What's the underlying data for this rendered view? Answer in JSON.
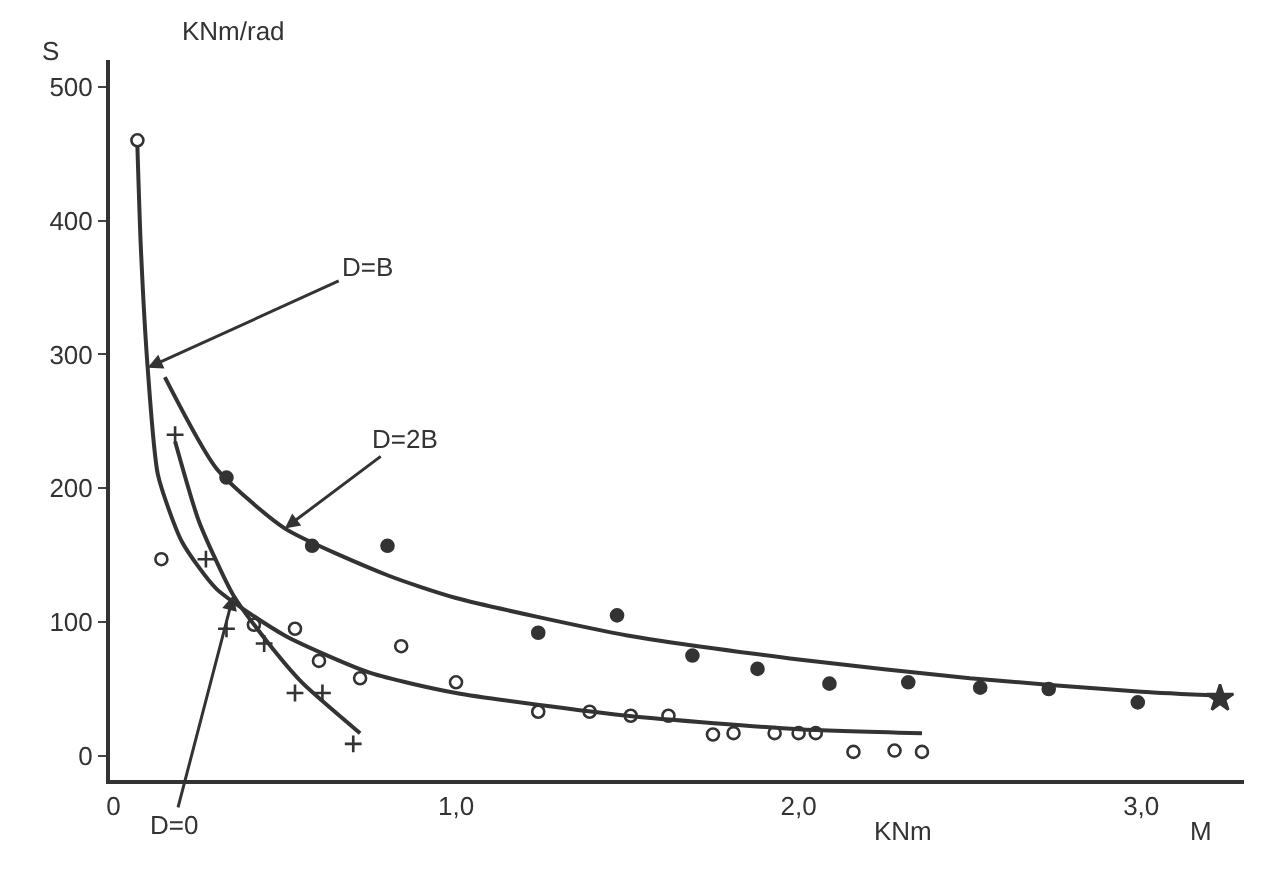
{
  "chart_data": {
    "type": "scatter",
    "ylabel": "S",
    "xlabel": "M",
    "annotations": [
      "KNm/rad",
      "KNm",
      {
        "text": "D=B",
        "x": 0.1,
        "y": 290
      },
      {
        "text": "D=2B",
        "x": 0.5,
        "y": 170
      },
      {
        "text": "D=0",
        "x": 0.35,
        "y": 120
      }
    ],
    "xlim": [
      -0.01,
      3.3
    ],
    "xticks": [
      0,
      {
        "value": 1.0,
        "label": "1,0"
      },
      {
        "value": 2.0,
        "label": "2,0"
      },
      {
        "value": 3.0,
        "label": "3,0"
      }
    ],
    "ylim": [
      -18,
      520
    ],
    "yticks": [
      0,
      100,
      200,
      300,
      400,
      500
    ],
    "series": [
      {
        "marker": "circle-open",
        "color": "#333333",
        "x": [
          0.07,
          0.14,
          0.41,
          0.53,
          0.6,
          0.72,
          0.84,
          1.0,
          1.24,
          1.39,
          1.51,
          1.62,
          1.75,
          1.81,
          1.93,
          2.0,
          2.05,
          2.16,
          2.28,
          2.36
        ],
        "values": [
          460,
          147,
          98,
          95,
          71,
          58,
          82,
          55,
          33,
          33,
          30,
          30,
          16,
          17,
          17,
          17,
          17,
          3,
          4,
          3
        ]
      },
      {
        "marker": "cross",
        "color": "#333333",
        "x": [
          0.18,
          0.27,
          0.33,
          0.44,
          0.53,
          0.61,
          0.7
        ],
        "values": [
          240,
          147,
          95,
          84,
          47,
          47,
          9
        ]
      },
      {
        "marker": "circle",
        "color": "#333333",
        "x": [
          0.33,
          0.58,
          0.8,
          1.24,
          1.47,
          1.69,
          1.88,
          2.09,
          2.32,
          2.53,
          2.73,
          2.99
        ],
        "values": [
          208,
          157,
          157,
          92,
          105,
          75,
          65,
          54,
          55,
          51,
          50,
          40
        ]
      },
      {
        "marker": "star",
        "color": "#333333",
        "x": [
          3.23
        ],
        "values": [
          43
        ]
      },
      {
        "type": "line",
        "marker": "none",
        "color": "#333333",
        "x": [
          0.07,
          0.08,
          0.1,
          0.13,
          0.2,
          0.3,
          0.5,
          0.75,
          1.0,
          1.5,
          2.0,
          2.36
        ],
        "values": [
          455,
          380,
          290,
          210,
          160,
          125,
          90,
          62,
          47,
          30,
          20,
          17
        ]
      },
      {
        "type": "line",
        "marker": "none",
        "color": "#333333",
        "x": [
          0.15,
          0.3,
          0.5,
          0.8,
          1.0,
          1.5,
          2.0,
          2.5,
          3.0,
          3.23
        ],
        "values": [
          283,
          215,
          170,
          135,
          118,
          90,
          72,
          58,
          48,
          45
        ]
      },
      {
        "type": "line",
        "marker": "none",
        "color": "#333333",
        "x": [
          0.18,
          0.25,
          0.35,
          0.45,
          0.55,
          0.72
        ],
        "values": [
          235,
          175,
          120,
          85,
          55,
          17
        ]
      }
    ]
  }
}
